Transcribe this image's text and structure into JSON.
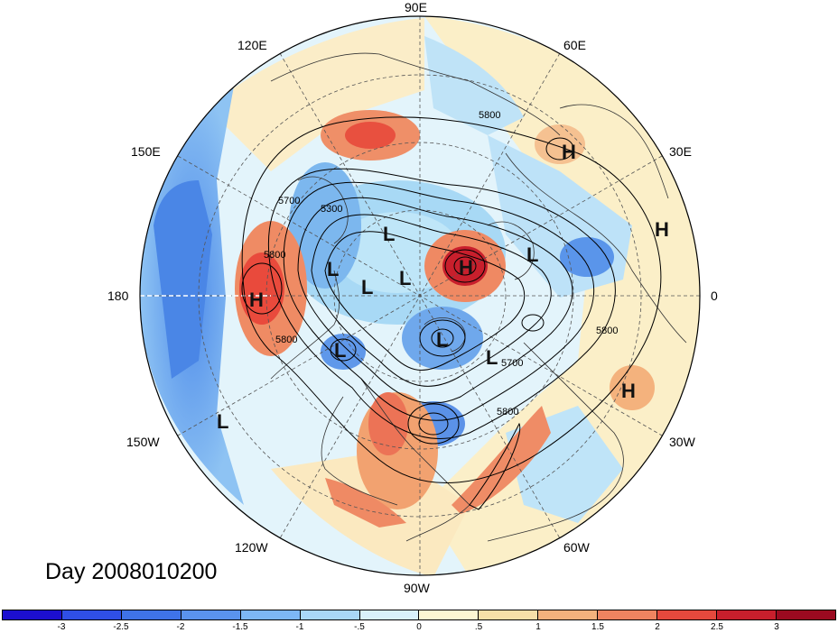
{
  "title": "Day 2008010200",
  "longitude_labels": [
    "90E",
    "60E",
    "30E",
    "0",
    "30W",
    "60W",
    "90W",
    "120W",
    "150W",
    "180",
    "150E",
    "120E"
  ],
  "pressure_centers": [
    {
      "type": "H",
      "lon_label": "near 180"
    },
    {
      "type": "H",
      "lon_label": "Europe/Ural"
    },
    {
      "type": "H",
      "lon_label": "Arctic"
    },
    {
      "type": "H",
      "lon_label": "Africa N"
    },
    {
      "type": "H",
      "lon_label": "Atlantic"
    },
    {
      "type": "L",
      "lon_label": "multiple"
    }
  ],
  "center_symbols": [
    "H",
    "H",
    "H",
    "H",
    "H",
    "L",
    "L",
    "L",
    "L",
    "L",
    "L",
    "L",
    "L",
    "L",
    "L"
  ],
  "contour_labels": [
    "5800",
    "5700",
    "5300",
    "5800",
    "5800",
    "5800",
    "5700",
    "5800",
    "5800"
  ],
  "colorbar": {
    "ticks": [
      "-3",
      "-2.5",
      "-2",
      "-1.5",
      "-1",
      "-.5",
      "0",
      ".5",
      "1",
      "1.5",
      "2",
      "2.5",
      "3"
    ],
    "colors": [
      "#1c0fcf",
      "#2f4fe6",
      "#3f73e8",
      "#5a93ee",
      "#7db7f5",
      "#a9d7f7",
      "#d9f1fb",
      "#fdf7d2",
      "#f7dfa8",
      "#f4b27d",
      "#ef8460",
      "#e5493d",
      "#c81f2c",
      "#9b0a20"
    ]
  },
  "colors": {
    "grid": "#555555",
    "coast": "#333333",
    "contour": "#000000"
  }
}
